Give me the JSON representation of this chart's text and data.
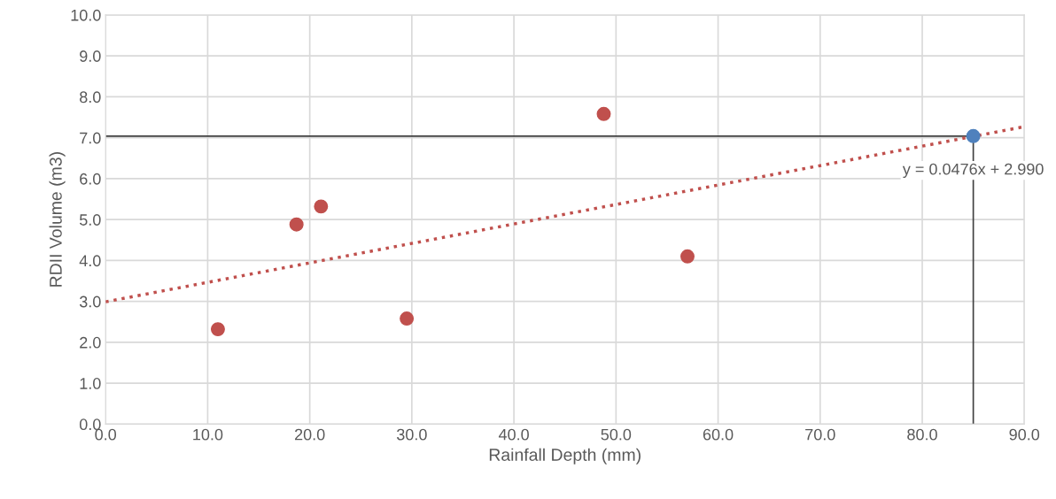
{
  "chart_data": {
    "type": "scatter",
    "xlabel": "Rainfall Depth (mm)",
    "ylabel": "RDII Volume (m3)",
    "series": [
      {
        "color": "#c0504d",
        "marker": "circle",
        "x": [
          11.0,
          18.7,
          21.1,
          29.5,
          48.8,
          57.0
        ],
        "values": [
          2.32,
          4.88,
          5.32,
          2.58,
          7.58,
          4.1
        ]
      },
      {
        "color": "#4f81bd",
        "marker": "circle",
        "x": [
          85.0
        ],
        "values": [
          7.04
        ]
      },
      {
        "type": "line",
        "color": "#c0504d",
        "line_style": "dotted",
        "x": [
          0,
          90
        ],
        "values": [
          2.99,
          7.27
        ]
      }
    ],
    "ref_lines": [
      {
        "axis": "y",
        "value": 7.04,
        "color": "#404040"
      },
      {
        "axis": "x",
        "value": 85.0,
        "color": "#404040"
      }
    ],
    "annotations": [
      {
        "text": "y = 0.0476x + 2.990",
        "x": 85.0,
        "y": 6.2
      }
    ],
    "xlim": [
      0,
      90
    ],
    "xticks": [
      {
        "value": 0,
        "label": "0.0"
      },
      {
        "value": 10,
        "label": "10.0"
      },
      {
        "value": 20,
        "label": "20.0"
      },
      {
        "value": 30,
        "label": "30.0"
      },
      {
        "value": 40,
        "label": "40.0"
      },
      {
        "value": 50,
        "label": "50.0"
      },
      {
        "value": 60,
        "label": "60.0"
      },
      {
        "value": 70,
        "label": "70.0"
      },
      {
        "value": 80,
        "label": "80.0"
      },
      {
        "value": 90,
        "label": "90.0"
      }
    ],
    "ylim": [
      0,
      10
    ],
    "yticks": [
      {
        "value": 0,
        "label": "0.0"
      },
      {
        "value": 1,
        "label": "1.0"
      },
      {
        "value": 2,
        "label": "2.0"
      },
      {
        "value": 3,
        "label": "3.0"
      },
      {
        "value": 4,
        "label": "4.0"
      },
      {
        "value": 5,
        "label": "5.0"
      },
      {
        "value": 6,
        "label": "6.0"
      },
      {
        "value": 7,
        "label": "7.0"
      },
      {
        "value": 8,
        "label": "8.0"
      },
      {
        "value": 9,
        "label": "9.0"
      },
      {
        "value": 10,
        "label": "10.0"
      }
    ],
    "grid": true
  }
}
